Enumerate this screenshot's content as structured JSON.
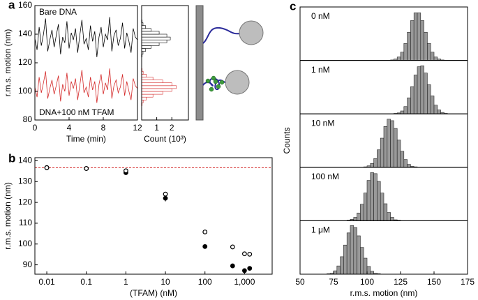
{
  "chart_data": [
    {
      "type": "line",
      "panel": "a",
      "xlabel": "Time (min)",
      "ylabel": "r.m.s. motion (nm)",
      "xlim": [
        0,
        12
      ],
      "xticks": [
        0,
        4,
        8,
        12
      ],
      "ylim": [
        80,
        160
      ],
      "yticks": [
        80,
        100,
        120,
        140,
        160
      ],
      "x": [
        0,
        0.25,
        0.5,
        0.75,
        1,
        1.25,
        1.5,
        1.75,
        2,
        2.25,
        2.5,
        2.75,
        3,
        3.25,
        3.5,
        3.75,
        4,
        4.25,
        4.5,
        4.75,
        5,
        5.25,
        5.5,
        5.75,
        6,
        6.25,
        6.5,
        6.75,
        7,
        7.25,
        7.5,
        7.75,
        8,
        8.25,
        8.5,
        8.75,
        9,
        9.25,
        9.5,
        9.75,
        10,
        10.25,
        10.5,
        10.75,
        11,
        11.25,
        11.5,
        11.75,
        12
      ],
      "series": [
        {
          "name": "Bare DNA",
          "color": "#000000",
          "values": [
            137,
            129,
            145,
            132,
            140,
            151,
            128,
            136,
            143,
            131,
            139,
            147,
            126,
            138,
            134,
            149,
            130,
            141,
            136,
            144,
            127,
            139,
            150,
            133,
            137,
            129,
            146,
            135,
            142,
            124,
            138,
            145,
            131,
            140,
            136,
            152,
            128,
            139,
            143,
            132,
            137,
            148,
            130,
            141,
            135,
            127,
            144,
            138,
            136
          ]
        },
        {
          "name": "DNA+100 nM TFAM",
          "color": "#d42a2a",
          "values": [
            103,
            96,
            110,
            99,
            106,
            114,
            95,
            102,
            108,
            98,
            104,
            111,
            93,
            105,
            100,
            113,
            97,
            107,
            102,
            109,
            94,
            104,
            115,
            99,
            103,
            96,
            110,
            101,
            107,
            92,
            105,
            112,
            98,
            106,
            101,
            116,
            95,
            104,
            108,
            99,
            103,
            112,
            97,
            107,
            100,
            94,
            109,
            104,
            102
          ]
        }
      ]
    },
    {
      "type": "histogram",
      "orientation": "horizontal",
      "xlabel": "Count (10³)",
      "xlim": [
        0,
        3.1
      ],
      "xticks": [
        1,
        2
      ],
      "ylim": [
        80,
        160
      ],
      "series": [
        {
          "color": "#000000",
          "bins": [
            124,
            126,
            128,
            130,
            132,
            134,
            136,
            138,
            140,
            142,
            144,
            146,
            148,
            150
          ],
          "counts": [
            0.03,
            0.09,
            0.26,
            0.62,
            1.16,
            1.67,
            1.9,
            1.67,
            1.16,
            0.62,
            0.26,
            0.09,
            0.03
          ]
        },
        {
          "color": "#d42a2a",
          "bins": [
            90,
            92,
            94,
            96,
            98,
            100,
            102,
            104,
            106,
            108,
            110,
            112,
            114,
            116
          ],
          "counts": [
            0.03,
            0.1,
            0.31,
            0.75,
            1.4,
            2.0,
            2.3,
            2.0,
            1.4,
            0.75,
            0.31,
            0.1,
            0.03
          ]
        }
      ]
    },
    {
      "type": "scatter",
      "panel": "b",
      "xlabel": "(TFAM) (nM)",
      "ylabel": "r.m.s. motion (nm)",
      "log_x": true,
      "xlim": [
        0.005,
        5000
      ],
      "xticks": [
        0.01,
        0.1,
        1,
        10,
        100,
        {
          "value": 1000,
          "label": "1,000"
        }
      ],
      "ylim": [
        85.5,
        141.5
      ],
      "yticks": [
        90,
        100,
        110,
        120,
        130,
        140
      ],
      "hline": 136.7,
      "hline_color": "#d42a2a",
      "series": [
        {
          "marker": "filled",
          "color": "#000000",
          "x": [
            0.01,
            0.1,
            1,
            10,
            100,
            500,
            1000,
            1350
          ],
          "values": [
            136.7,
            136.3,
            134.3,
            122,
            98.8,
            89.5,
            87.2,
            88.3
          ],
          "errors": [
            0.5,
            0.5,
            0.5,
            1.5,
            0.8,
            0.5,
            1,
            0.8
          ]
        },
        {
          "marker": "open",
          "color": "#000000",
          "x": [
            0.01,
            0.1,
            1,
            10,
            100,
            500,
            1000,
            1350
          ],
          "values": [
            136.7,
            136.3,
            135.2,
            124,
            105.8,
            98.6,
            95.3,
            95.1
          ],
          "errors": [
            0.5,
            0.5,
            0.5,
            0.6,
            0.8,
            0.5,
            0.6,
            0.8
          ]
        }
      ]
    },
    {
      "type": "histogram-stack",
      "panel": "c",
      "xlabel": "r.m.s. motion (nm)",
      "ylabel": "Counts",
      "color": "#999999",
      "xlim": [
        50,
        175
      ],
      "xticks": [
        50,
        75,
        100,
        125,
        150,
        175
      ],
      "ylim": [
        0,
        110
      ],
      "panels": [
        {
          "label": "0 nM",
          "bins": [
            117.5,
            120,
            122.5,
            125,
            127.5,
            130,
            132.5,
            135,
            137.5,
            140,
            142.5,
            145,
            147.5,
            150,
            152.5,
            155,
            157.5
          ],
          "counts": [
            1,
            3,
            7,
            17,
            35,
            58,
            82,
            98,
            98,
            82,
            58,
            35,
            17,
            7,
            3,
            1
          ]
        },
        {
          "label": "1 nM",
          "bins": [
            120,
            122.5,
            125,
            127.5,
            130,
            132.5,
            135,
            137.5,
            140,
            142.5,
            145,
            147.5,
            150,
            152.5,
            155,
            157.5,
            160
          ],
          "counts": [
            1,
            2,
            6,
            15,
            33,
            56,
            80,
            97,
            99,
            84,
            60,
            37,
            18,
            8,
            3,
            1
          ]
        },
        {
          "label": "10 nM",
          "bins": [
            97.5,
            100,
            102.5,
            105,
            107.5,
            110,
            112.5,
            115,
            117.5,
            120,
            122.5,
            125,
            127.5,
            130,
            132.5,
            135,
            137.5
          ],
          "counts": [
            1,
            3,
            8,
            18,
            36,
            60,
            84,
            99,
            96,
            80,
            56,
            33,
            16,
            6,
            2,
            1
          ]
        },
        {
          "label": "100 nM",
          "bins": [
            85,
            87.5,
            90,
            92.5,
            95,
            97.5,
            100,
            102.5,
            105,
            107.5,
            110,
            112.5,
            115,
            117.5,
            120,
            122.5,
            125
          ],
          "counts": [
            1,
            3,
            7,
            16,
            34,
            57,
            83,
            99,
            97,
            81,
            57,
            35,
            17,
            7,
            2,
            1
          ]
        },
        {
          "label": "1 μM",
          "bins": [
            70,
            72.5,
            75,
            77.5,
            80,
            82.5,
            85,
            87.5,
            90,
            92.5,
            95,
            97.5,
            100,
            102.5,
            105,
            107.5,
            110
          ],
          "counts": [
            1,
            2,
            7,
            17,
            36,
            60,
            85,
            100,
            96,
            79,
            55,
            33,
            16,
            6,
            2,
            1
          ]
        }
      ]
    }
  ]
}
